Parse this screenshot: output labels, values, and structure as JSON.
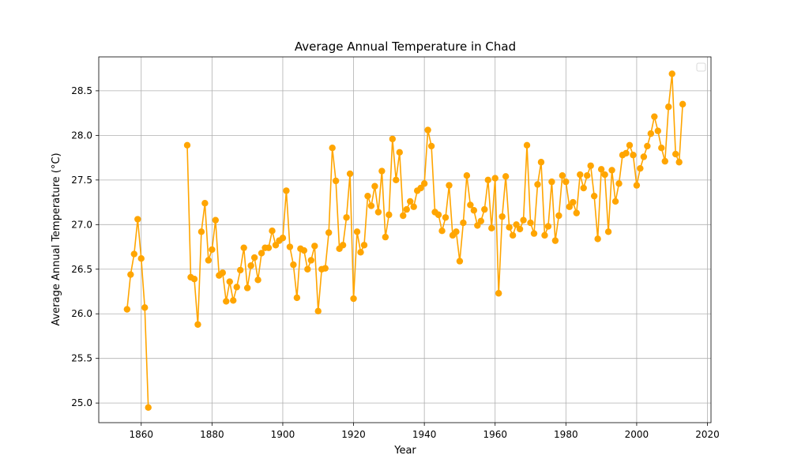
{
  "chart_data": {
    "type": "line",
    "title": "Average Annual Temperature in Chad",
    "xlabel": "Year",
    "ylabel": "Average Annual Temperature (°C)",
    "xlim": [
      1848,
      2021
    ],
    "ylim": [
      24.78,
      28.88
    ],
    "xticks": [
      1860,
      1880,
      1900,
      1920,
      1940,
      1960,
      1980,
      2000,
      2020
    ],
    "yticks": [
      25.0,
      25.5,
      26.0,
      26.5,
      27.0,
      27.5,
      28.0,
      28.5
    ],
    "ytick_labels": [
      "25.0",
      "25.5",
      "26.0",
      "26.5",
      "27.0",
      "27.5",
      "28.0",
      "28.5"
    ],
    "grid": true,
    "legend": "top-right (empty)",
    "color": "#FFA500",
    "series": [
      {
        "x": [
          1856,
          1857,
          1858,
          1859,
          1860,
          1861,
          1862,
          1863,
          1864,
          1865,
          1866,
          1867,
          1868,
          1869,
          1870,
          1871,
          1872,
          1873,
          1874,
          1875,
          1876,
          1877,
          1878,
          1879,
          1880,
          1881,
          1882,
          1883,
          1884,
          1885,
          1886,
          1887,
          1888,
          1889,
          1890,
          1891,
          1892,
          1893,
          1894,
          1895,
          1896,
          1897,
          1898,
          1899,
          1900,
          1901,
          1902,
          1903,
          1904,
          1905,
          1906,
          1907,
          1908,
          1909,
          1910,
          1911,
          1912,
          1913,
          1914,
          1915,
          1916,
          1917,
          1918,
          1919,
          1920,
          1921,
          1922,
          1923,
          1924,
          1925,
          1926,
          1927,
          1928,
          1929,
          1930,
          1931,
          1932,
          1933,
          1934,
          1935,
          1936,
          1937,
          1938,
          1939,
          1940,
          1941,
          1942,
          1943,
          1944,
          1945,
          1946,
          1947,
          1948,
          1949,
          1950,
          1951,
          1952,
          1953,
          1954,
          1955,
          1956,
          1957,
          1958,
          1959,
          1960,
          1961,
          1962,
          1963,
          1964,
          1965,
          1966,
          1967,
          1968,
          1969,
          1970,
          1971,
          1972,
          1973,
          1974,
          1975,
          1976,
          1977,
          1978,
          1979,
          1980,
          1981,
          1982,
          1983,
          1984,
          1985,
          1986,
          1987,
          1988,
          1989,
          1990,
          1991,
          1992,
          1993,
          1994,
          1995,
          1996,
          1997,
          1998,
          1999,
          2000,
          2001,
          2002,
          2003,
          2004,
          2005,
          2006,
          2007,
          2008,
          2009,
          2010,
          2011,
          2012,
          2013
        ],
        "y": [
          26.05,
          26.44,
          26.67,
          27.06,
          26.62,
          26.07,
          24.95,
          null,
          null,
          null,
          null,
          null,
          null,
          null,
          null,
          null,
          null,
          27.89,
          26.41,
          26.39,
          25.88,
          26.92,
          27.24,
          26.6,
          26.72,
          27.05,
          26.43,
          26.46,
          26.14,
          26.36,
          26.15,
          26.3,
          26.49,
          26.74,
          26.29,
          26.54,
          26.63,
          26.38,
          26.68,
          26.74,
          26.74,
          26.93,
          26.77,
          26.82,
          26.85,
          27.38,
          26.75,
          26.55,
          26.18,
          26.73,
          26.71,
          26.5,
          26.6,
          26.76,
          26.03,
          26.5,
          26.51,
          26.91,
          27.86,
          27.49,
          26.73,
          26.77,
          27.08,
          27.57,
          26.17,
          26.92,
          26.69,
          26.77,
          27.32,
          27.21,
          27.43,
          27.14,
          27.6,
          26.86,
          27.11,
          27.96,
          27.5,
          27.81,
          27.1,
          27.17,
          27.26,
          27.2,
          27.38,
          27.41,
          27.46,
          28.06,
          27.88,
          27.14,
          27.11,
          26.93,
          27.08,
          27.44,
          26.88,
          26.92,
          26.59,
          27.02,
          27.55,
          27.22,
          27.16,
          26.99,
          27.04,
          27.17,
          27.5,
          26.96,
          27.52,
          26.23,
          27.09,
          27.54,
          26.97,
          26.88,
          27.0,
          26.95,
          27.05,
          27.89,
          27.02,
          26.9,
          27.45,
          27.7,
          26.88,
          26.98,
          27.48,
          26.82,
          27.1,
          27.55,
          27.48,
          27.2,
          27.25,
          27.13,
          27.56,
          27.41,
          27.55,
          27.66,
          27.32,
          26.84,
          27.62,
          27.56,
          26.92,
          27.61,
          27.26,
          27.46,
          27.78,
          27.8,
          27.89,
          27.78,
          27.44,
          27.63,
          27.76,
          27.88,
          28.02,
          28.21,
          28.05,
          27.86,
          27.71,
          28.32,
          28.69,
          27.79,
          27.7,
          28.35
        ]
      }
    ]
  }
}
